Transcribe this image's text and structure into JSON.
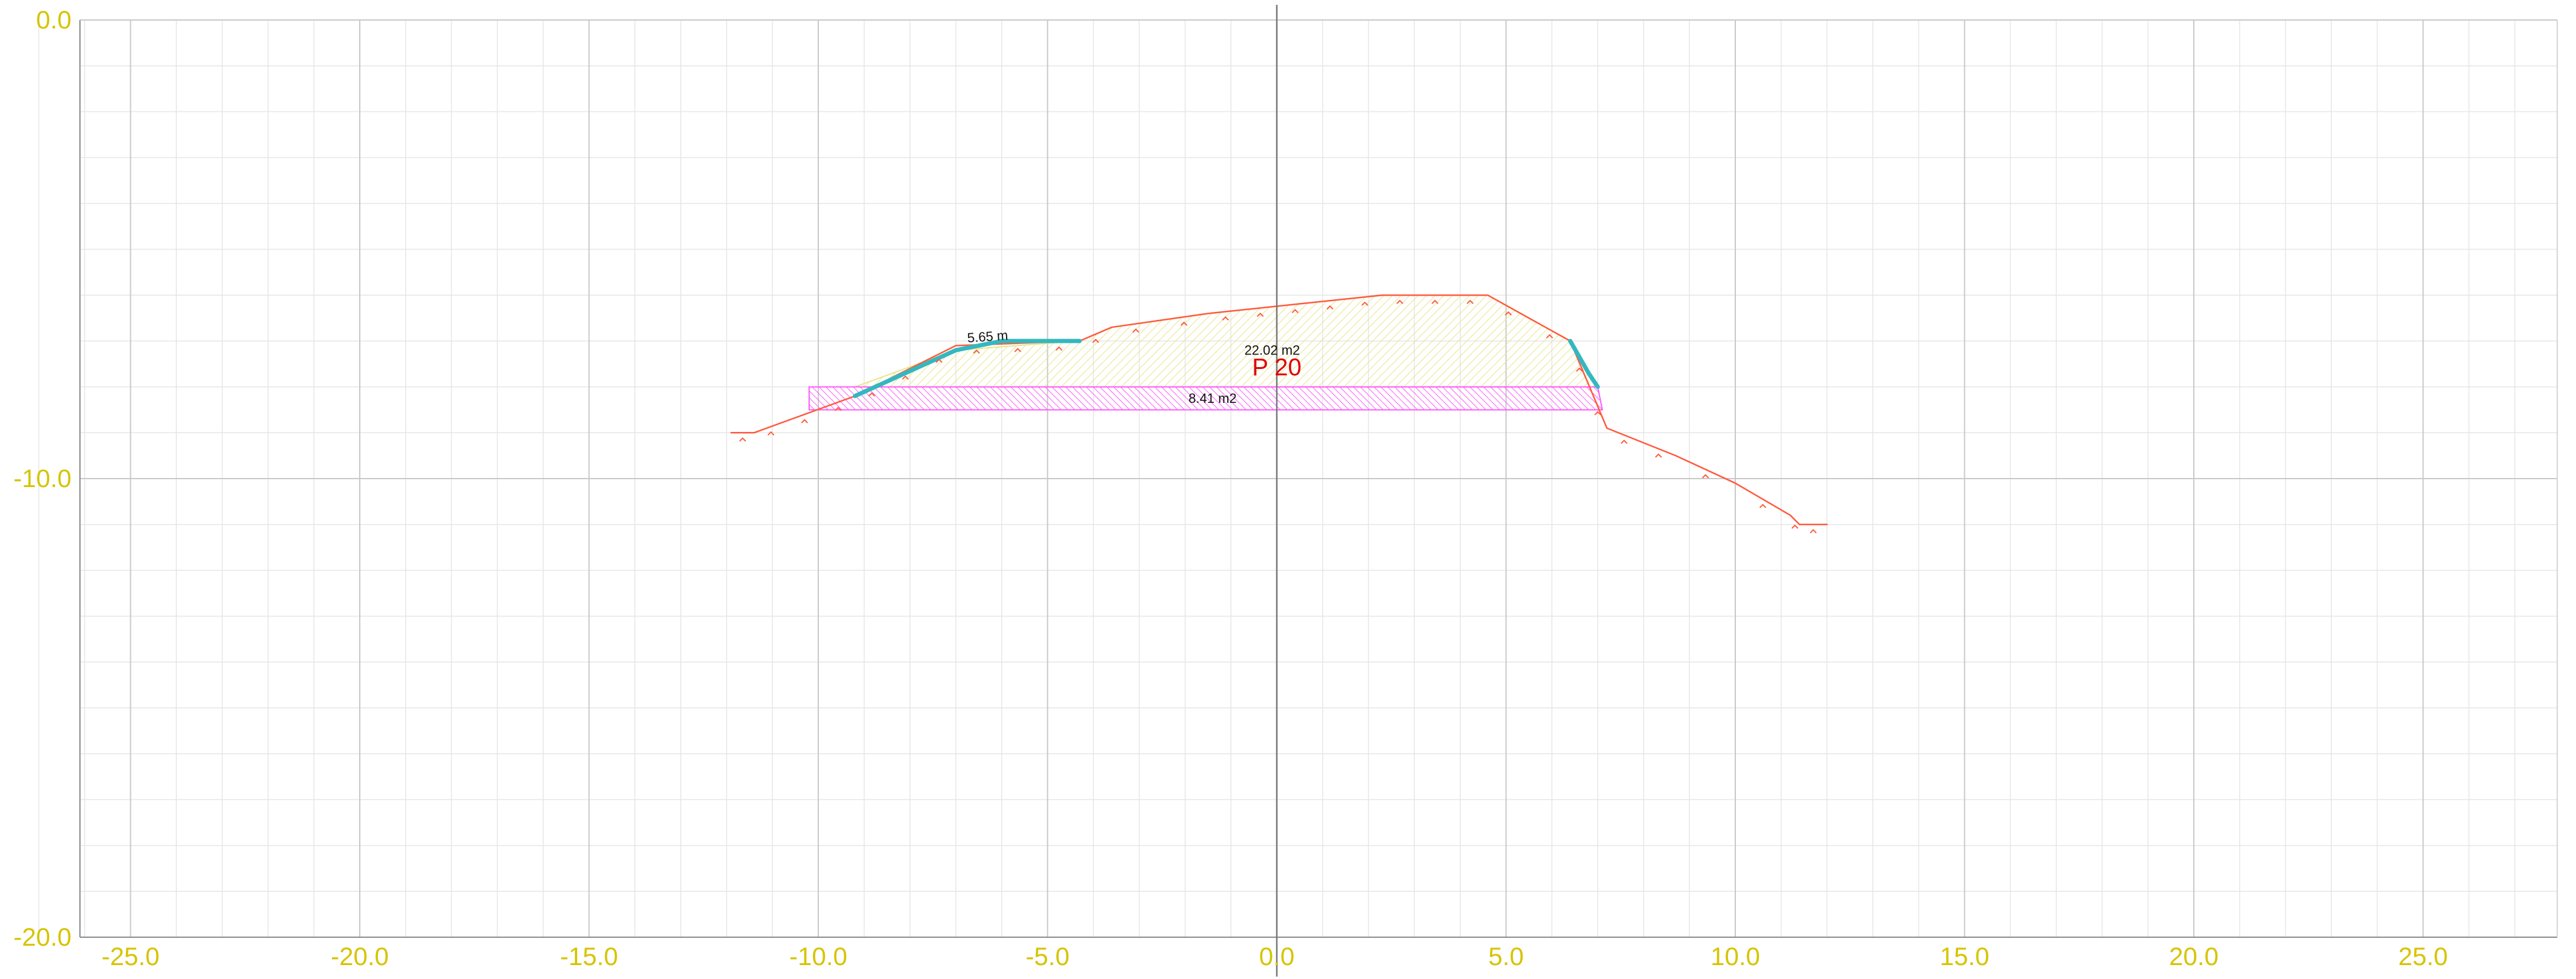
{
  "section": {
    "name": "P 20",
    "fill_area": "22.02 m2",
    "cut_area": "8.41 m2",
    "top_width": "5.65 m"
  },
  "axes": {
    "x_ticks": [
      "-25.0",
      "-20.0",
      "-15.0",
      "-10.0",
      "-5.0",
      "0.0",
      "5.0",
      "10.0",
      "15.0",
      "20.0",
      "25.0"
    ],
    "y_ticks": [
      "0.0",
      "-10.0",
      "-20.0"
    ],
    "x_range": [
      -27.1,
      27.1
    ],
    "y_range": [
      -20.0,
      0.0
    ],
    "minor_step": 1.0,
    "major_step": 5.0
  },
  "chart_data": {
    "type": "line",
    "xlim": [
      -27.1,
      27.1
    ],
    "ylim": [
      -20.0,
      0.0
    ],
    "grid": true,
    "series": [
      {
        "role": "ground-profile",
        "color": "#ff5a3c",
        "points": [
          [
            -11.9,
            -9.0
          ],
          [
            -11.4,
            -9.0
          ],
          [
            -9.2,
            -8.2
          ],
          [
            -7.0,
            -7.1
          ],
          [
            -4.3,
            -7.0
          ],
          [
            -3.6,
            -6.7
          ],
          [
            -1.5,
            -6.4
          ],
          [
            2.3,
            -6.0
          ],
          [
            4.6,
            -6.0
          ],
          [
            6.4,
            -7.0
          ],
          [
            7.2,
            -8.9
          ],
          [
            8.7,
            -9.5
          ],
          [
            10.0,
            -10.1
          ],
          [
            11.2,
            -10.8
          ],
          [
            11.4,
            -11.0
          ],
          [
            12.0,
            -11.0
          ]
        ]
      },
      {
        "role": "design-surface",
        "color": "#35b7bf",
        "points": [
          [
            -9.2,
            -8.2
          ],
          [
            -7.0,
            -7.2
          ],
          [
            -6.0,
            -7.0
          ],
          [
            -4.3,
            -7.0
          ]
        ]
      },
      {
        "role": "design-surface-right",
        "color": "#35b7bf",
        "points": [
          [
            6.4,
            -7.0
          ],
          [
            6.8,
            -7.7
          ],
          [
            7.0,
            -8.0
          ]
        ]
      }
    ],
    "areas": [
      {
        "label": "22.02 m2",
        "color": "#e6e68a",
        "points": [
          [
            -9.2,
            -8.0
          ],
          [
            -7.0,
            -7.2
          ],
          [
            -4.3,
            -7.0
          ],
          [
            -3.6,
            -6.7
          ],
          [
            -1.5,
            -6.4
          ],
          [
            2.3,
            -6.0
          ],
          [
            4.6,
            -6.0
          ],
          [
            6.4,
            -7.0
          ],
          [
            7.0,
            -8.0
          ],
          [
            -9.2,
            -8.0
          ]
        ]
      },
      {
        "label": "8.41 m2",
        "color": "#ff58ff",
        "points": [
          [
            -10.2,
            -8.0
          ],
          [
            7.0,
            -8.0
          ],
          [
            7.1,
            -8.5
          ],
          [
            -10.2,
            -8.5
          ]
        ]
      }
    ]
  },
  "colors": {
    "grid_minor": "#e6e6e6",
    "grid_major": "#c8c8c8",
    "axis": "#8a8a8a",
    "tick_label": "#d6c400",
    "profile": "#ff5a3c",
    "design": "#35b7bf",
    "fill_hatch": "#e6e68a",
    "cut_hatch": "#ff58ff",
    "section_label": "#e00000"
  }
}
